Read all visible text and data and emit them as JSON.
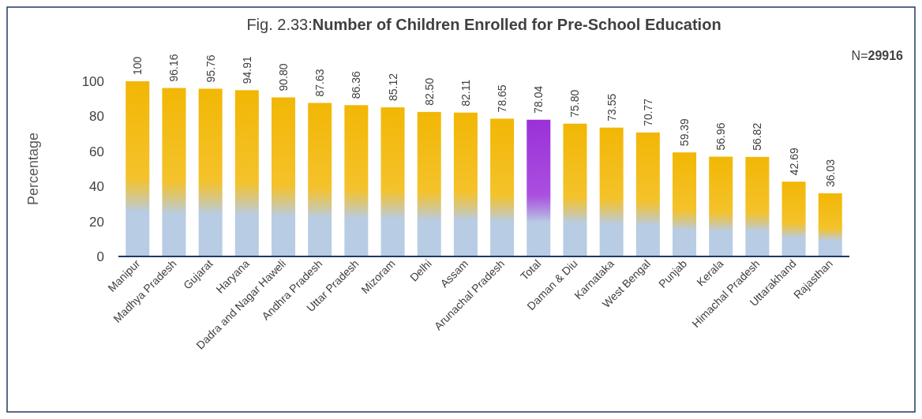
{
  "chart_data": {
    "type": "bar",
    "title": "Fig. 2.33:Number of Children Enrolled for  Pre-School Education",
    "ylabel": "Percentage",
    "annotations": [
      "N=29916"
    ],
    "categories": [
      "Manipur",
      "Madhya Pradesh",
      "Gujarat",
      "Haryana",
      "Dadra and Nagar Haweli",
      "Andhra Pradesh",
      "Uttar Pradesh",
      "Mizoram",
      "Delhi",
      "Assam",
      "Arunachal Pradesh",
      "Total",
      "Daman & Diu",
      "Karnataka",
      "West Bengal",
      "Punjab",
      "Kerala",
      "Himachal Pradesh",
      "Uttarakhand",
      "Rajasthan"
    ],
    "values": [
      100,
      96.16,
      95.76,
      94.91,
      90.8,
      87.63,
      86.36,
      85.12,
      82.5,
      82.11,
      78.65,
      78.04,
      75.8,
      73.55,
      70.77,
      59.39,
      56.96,
      56.82,
      42.69,
      36.03
    ],
    "value_labels": [
      "100",
      "96.16",
      "95.76",
      "94.91",
      "90.80",
      "87.63",
      "86.36",
      "85.12",
      "82.50",
      "82.11",
      "78.65",
      "78.04",
      "75.80",
      "73.55",
      "70.77",
      "59.39",
      "56.96",
      "56.82",
      "42.69",
      "36.03"
    ],
    "colors": [
      "#f2b705",
      "#f2b705",
      "#f2b705",
      "#f2b705",
      "#f2b705",
      "#f2b705",
      "#f2b705",
      "#f2b705",
      "#f2b705",
      "#f2b705",
      "#f2b705",
      "#9b30d9",
      "#f2b705",
      "#f2b705",
      "#f2b705",
      "#f2b705",
      "#f2b705",
      "#f2b705",
      "#f2b705",
      "#f2b705"
    ],
    "ylim": [
      0,
      100
    ],
    "yticks": [
      0,
      20,
      40,
      60,
      80,
      100
    ],
    "grid": false
  }
}
